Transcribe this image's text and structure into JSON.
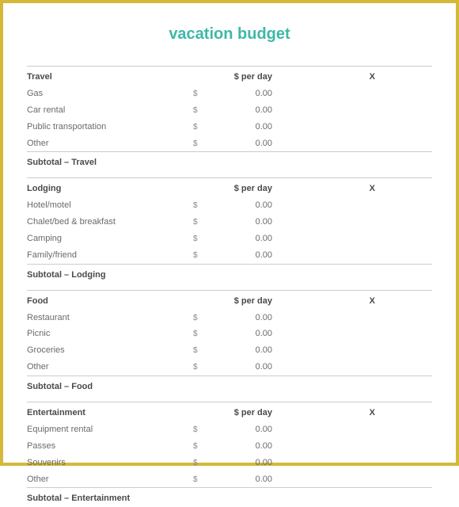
{
  "title": "vacation budget",
  "colors": {
    "border": "#d4b838",
    "title": "#3eb8a8",
    "text": "#6a6a6a",
    "header_text": "#4a4a4a",
    "divider": "#cccccc",
    "background": "#ffffff"
  },
  "typography": {
    "title_fontsize": 20,
    "body_fontsize": 11,
    "font_family": "Arial"
  },
  "currency_symbol": "$",
  "per_day_label": "$ per day",
  "multiplier_label": "X",
  "sections": [
    {
      "name": "Travel",
      "subtotal_label": "Subtotal – Travel",
      "items": [
        {
          "label": "Gas",
          "amount": "0.00"
        },
        {
          "label": "Car rental",
          "amount": "0.00"
        },
        {
          "label": "Public transportation",
          "amount": "0.00"
        },
        {
          "label": "Other",
          "amount": "0.00"
        }
      ]
    },
    {
      "name": "Lodging",
      "subtotal_label": "Subtotal – Lodging",
      "items": [
        {
          "label": "Hotel/motel",
          "amount": "0.00"
        },
        {
          "label": "Chalet/bed & breakfast",
          "amount": "0.00"
        },
        {
          "label": "Camping",
          "amount": "0.00"
        },
        {
          "label": "Family/friend",
          "amount": "0.00"
        }
      ]
    },
    {
      "name": "Food",
      "subtotal_label": "Subtotal – Food",
      "items": [
        {
          "label": "Restaurant",
          "amount": "0.00"
        },
        {
          "label": "Picnic",
          "amount": "0.00"
        },
        {
          "label": "Groceries",
          "amount": "0.00"
        },
        {
          "label": "Other",
          "amount": "0.00"
        }
      ]
    },
    {
      "name": "Entertainment",
      "subtotal_label": "Subtotal – Entertainment",
      "items": [
        {
          "label": "Equipment rental",
          "amount": "0.00"
        },
        {
          "label": "Passes",
          "amount": "0.00"
        },
        {
          "label": "Souvenirs",
          "amount": "0.00"
        },
        {
          "label": "Other",
          "amount": "0.00"
        }
      ]
    }
  ]
}
